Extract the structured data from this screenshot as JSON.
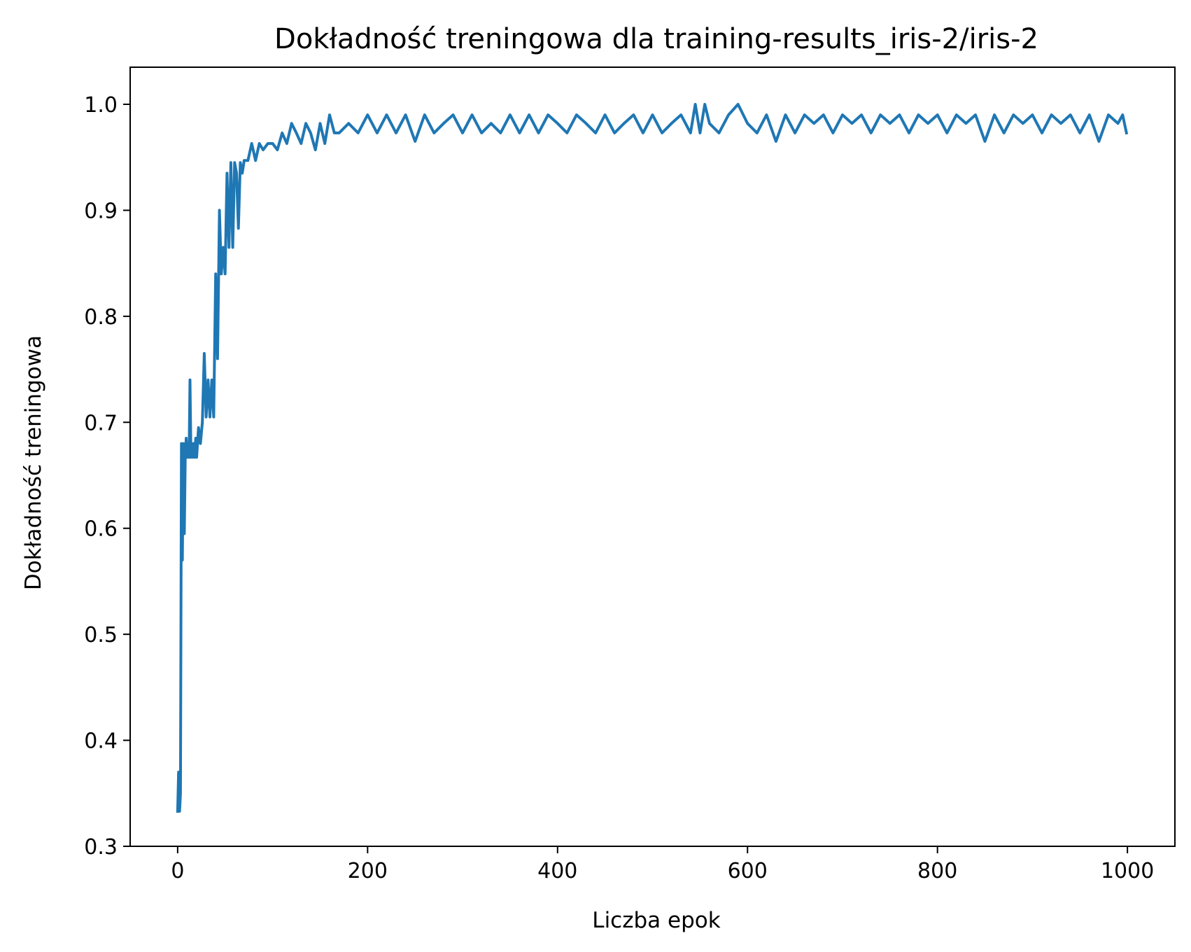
{
  "chart_data": {
    "type": "line",
    "title": "Dokładność treningowa dla training-results_iris-2/iris-2",
    "xlabel": "Liczba epok",
    "ylabel": "Dokładność treningowa",
    "xlim": [
      -50,
      1050
    ],
    "ylim": [
      0.3,
      1.035
    ],
    "xticks": [
      0,
      200,
      400,
      600,
      800,
      1000
    ],
    "yticks": [
      0.3,
      0.4,
      0.5,
      0.6,
      0.7,
      0.8,
      0.9,
      1.0
    ],
    "xtick_labels": [
      "0",
      "200",
      "400",
      "600",
      "800",
      "1000"
    ],
    "ytick_labels": [
      "0.3",
      "0.4",
      "0.5",
      "0.6",
      "0.7",
      "0.8",
      "0.9",
      "1.0"
    ],
    "grid": false,
    "legend": "none",
    "line_color": "#1f77b4",
    "series": [
      {
        "x": [
          0,
          1,
          2,
          3,
          4,
          5,
          6,
          7,
          8,
          9,
          10,
          11,
          12,
          13,
          14,
          15,
          16,
          17,
          18,
          19,
          20,
          22,
          24,
          26,
          28,
          30,
          32,
          34,
          36,
          38,
          40,
          42,
          44,
          46,
          48,
          50,
          52,
          54,
          56,
          58,
          60,
          62,
          64,
          66,
          68,
          70,
          74,
          78,
          82,
          86,
          90,
          95,
          100,
          105,
          110,
          115,
          120,
          125,
          130,
          135,
          140,
          145,
          150,
          155,
          160,
          165,
          170,
          180,
          190,
          200,
          210,
          220,
          230,
          240,
          250,
          260,
          270,
          280,
          290,
          300,
          310,
          320,
          330,
          340,
          350,
          360,
          370,
          380,
          390,
          400,
          410,
          420,
          430,
          440,
          450,
          460,
          470,
          480,
          490,
          500,
          510,
          520,
          530,
          540,
          545,
          550,
          555,
          560,
          570,
          580,
          590,
          600,
          610,
          620,
          630,
          640,
          650,
          660,
          670,
          680,
          690,
          700,
          710,
          720,
          730,
          740,
          750,
          760,
          770,
          780,
          790,
          800,
          810,
          820,
          830,
          840,
          850,
          860,
          870,
          880,
          890,
          900,
          910,
          920,
          930,
          940,
          950,
          960,
          970,
          980,
          990,
          995,
          999
        ],
        "y": [
          0.333,
          0.37,
          0.333,
          0.35,
          0.68,
          0.57,
          0.68,
          0.595,
          0.667,
          0.685,
          0.667,
          0.68,
          0.667,
          0.74,
          0.667,
          0.68,
          0.667,
          0.68,
          0.667,
          0.685,
          0.667,
          0.695,
          0.68,
          0.7,
          0.765,
          0.705,
          0.74,
          0.705,
          0.74,
          0.705,
          0.84,
          0.76,
          0.9,
          0.84,
          0.865,
          0.84,
          0.935,
          0.865,
          0.945,
          0.865,
          0.945,
          0.935,
          0.883,
          0.945,
          0.935,
          0.947,
          0.947,
          0.963,
          0.947,
          0.963,
          0.957,
          0.963,
          0.963,
          0.957,
          0.973,
          0.963,
          0.982,
          0.973,
          0.963,
          0.982,
          0.973,
          0.957,
          0.982,
          0.963,
          0.99,
          0.973,
          0.973,
          0.982,
          0.973,
          0.99,
          0.973,
          0.99,
          0.973,
          0.99,
          0.965,
          0.99,
          0.973,
          0.982,
          0.99,
          0.973,
          0.99,
          0.973,
          0.982,
          0.973,
          0.99,
          0.973,
          0.99,
          0.973,
          0.99,
          0.982,
          0.973,
          0.99,
          0.982,
          0.973,
          0.99,
          0.973,
          0.982,
          0.99,
          0.973,
          0.99,
          0.973,
          0.982,
          0.99,
          0.973,
          1.0,
          0.973,
          1.0,
          0.982,
          0.973,
          0.99,
          1.0,
          0.982,
          0.973,
          0.99,
          0.965,
          0.99,
          0.973,
          0.99,
          0.982,
          0.99,
          0.973,
          0.99,
          0.982,
          0.99,
          0.973,
          0.99,
          0.982,
          0.99,
          0.973,
          0.99,
          0.982,
          0.99,
          0.973,
          0.99,
          0.982,
          0.99,
          0.965,
          0.99,
          0.973,
          0.99,
          0.982,
          0.99,
          0.973,
          0.99,
          0.982,
          0.99,
          0.973,
          0.99,
          0.965,
          0.99,
          0.982,
          0.99,
          0.973
        ]
      }
    ]
  }
}
